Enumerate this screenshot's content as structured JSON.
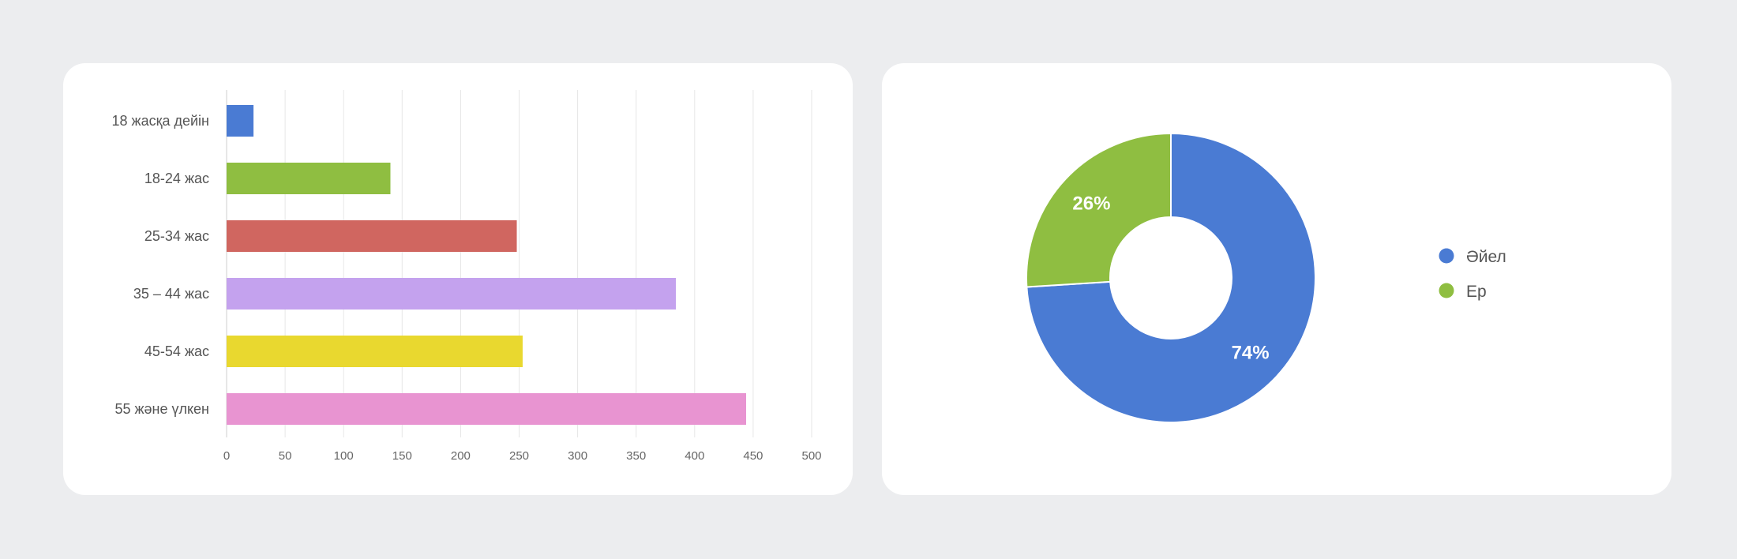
{
  "chart_data": [
    {
      "type": "bar",
      "orientation": "horizontal",
      "categories": [
        "18 жасқа дейін",
        "18-24 жас",
        "25-34 жас",
        "35 – 44 жас",
        "45-54 жас",
        "55 және үлкен"
      ],
      "values": [
        23,
        140,
        248,
        384,
        253,
        444
      ],
      "colors": [
        "#4a7bd3",
        "#8fbe41",
        "#d06660",
        "#c4a2ee",
        "#e9d82f",
        "#e894d1"
      ],
      "xticks": [
        0,
        50,
        100,
        150,
        200,
        250,
        300,
        350,
        400,
        450,
        500
      ],
      "xlim": [
        0,
        500
      ],
      "grid": true,
      "title": "",
      "xlabel": "",
      "ylabel": ""
    },
    {
      "type": "pie",
      "style": "donut",
      "labels": [
        "Әйел",
        "Ер"
      ],
      "values": [
        74,
        26
      ],
      "value_labels": [
        "74%",
        "26%"
      ],
      "colors": [
        "#4a7bd3",
        "#8fbe41"
      ],
      "legend": "right"
    }
  ]
}
